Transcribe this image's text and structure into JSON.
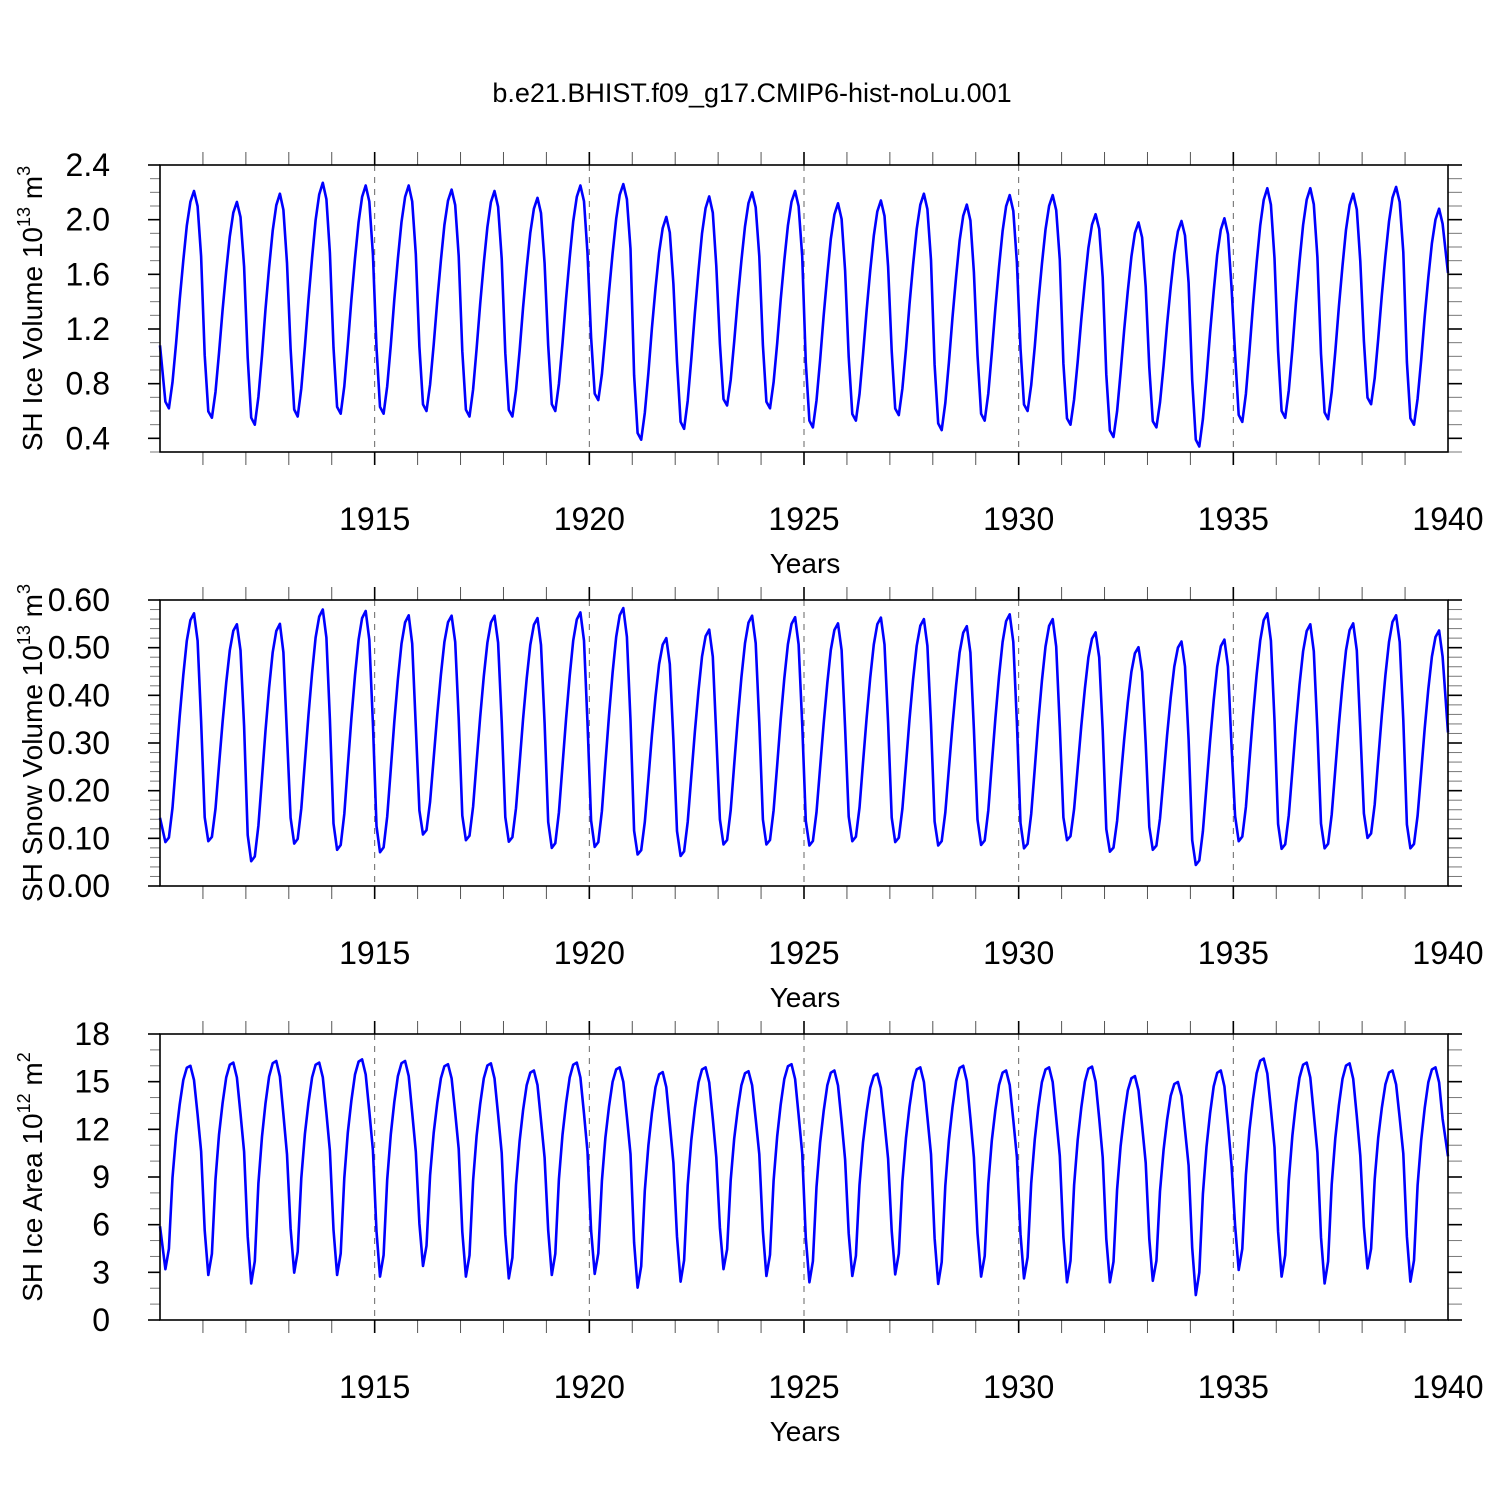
{
  "title": "b.e21.BHIST.f09_g17.CMIP6-hist-noLu.001",
  "line_color": "#0000ff",
  "chart_data": [
    {
      "type": "line",
      "ylabel": {
        "text": "SH Ice Volume 10",
        "exp1": "13",
        "unit": " m",
        "exp2": "3"
      },
      "xlabel": "Years",
      "xlim": [
        1910,
        1940
      ],
      "ylim": [
        0.3,
        2.4
      ],
      "xticks": [
        "1915",
        "1920",
        "1925",
        "1930",
        "1935",
        "1940"
      ],
      "yticks": [
        "0.4",
        "0.8",
        "1.2",
        "1.6",
        "2.0",
        "2.4"
      ],
      "grid": "dashed vertical lines at labeled years",
      "first_value": 1.08,
      "last_value": 1.61,
      "years": [
        1910,
        1911,
        1912,
        1913,
        1914,
        1915,
        1916,
        1917,
        1918,
        1919,
        1920,
        1921,
        1922,
        1923,
        1924,
        1925,
        1926,
        1927,
        1928,
        1929,
        1930,
        1931,
        1932,
        1933,
        1934,
        1935,
        1936,
        1937,
        1938,
        1939
      ],
      "annual_max": [
        2.21,
        2.13,
        2.19,
        2.27,
        2.25,
        2.25,
        2.22,
        2.21,
        2.16,
        2.25,
        2.26,
        2.02,
        2.17,
        2.2,
        2.21,
        2.12,
        2.14,
        2.19,
        2.11,
        2.18,
        2.18,
        2.04,
        1.98,
        1.99,
        2.01,
        2.23,
        2.23,
        2.19,
        2.24,
        2.08
      ],
      "annual_min": [
        0.62,
        0.55,
        0.5,
        0.56,
        0.58,
        0.58,
        0.6,
        0.56,
        0.56,
        0.6,
        0.68,
        0.39,
        0.47,
        0.64,
        0.62,
        0.48,
        0.53,
        0.57,
        0.46,
        0.53,
        0.6,
        0.5,
        0.41,
        0.48,
        0.34,
        0.52,
        0.55,
        0.54,
        0.65,
        0.5
      ]
    },
    {
      "type": "line",
      "ylabel": {
        "text": "SH Snow Volume 10",
        "exp1": "13",
        "unit": " m",
        "exp2": "3"
      },
      "xlabel": "Years",
      "xlim": [
        1910,
        1940
      ],
      "ylim": [
        0.0,
        0.6
      ],
      "xticks": [
        "1915",
        "1920",
        "1925",
        "1930",
        "1935",
        "1940"
      ],
      "yticks": [
        "0.00",
        "0.10",
        "0.20",
        "0.30",
        "0.40",
        "0.50",
        "0.60"
      ],
      "grid": "dashed vertical lines at labeled years",
      "first_value": 0.143,
      "last_value": 0.322,
      "years": [
        1910,
        1911,
        1912,
        1913,
        1914,
        1915,
        1916,
        1917,
        1918,
        1919,
        1920,
        1921,
        1922,
        1923,
        1924,
        1925,
        1926,
        1927,
        1928,
        1929,
        1930,
        1931,
        1932,
        1933,
        1934,
        1935,
        1936,
        1937,
        1938,
        1939
      ],
      "annual_max": [
        0.572,
        0.549,
        0.55,
        0.58,
        0.577,
        0.568,
        0.567,
        0.567,
        0.562,
        0.574,
        0.583,
        0.52,
        0.538,
        0.567,
        0.564,
        0.551,
        0.563,
        0.56,
        0.545,
        0.57,
        0.56,
        0.532,
        0.501,
        0.513,
        0.517,
        0.572,
        0.549,
        0.551,
        0.568,
        0.536
      ],
      "annual_min": [
        0.092,
        0.094,
        0.052,
        0.089,
        0.076,
        0.071,
        0.108,
        0.096,
        0.093,
        0.08,
        0.082,
        0.066,
        0.063,
        0.087,
        0.087,
        0.085,
        0.094,
        0.092,
        0.085,
        0.086,
        0.079,
        0.096,
        0.072,
        0.076,
        0.044,
        0.094,
        0.078,
        0.079,
        0.101,
        0.079
      ]
    },
    {
      "type": "line",
      "ylabel": {
        "text": "SH Ice Area 10",
        "exp1": "12",
        "unit": " m",
        "exp2": "2"
      },
      "xlabel": "Years",
      "xlim": [
        1910,
        1940
      ],
      "ylim": [
        0,
        18
      ],
      "xticks": [
        "1915",
        "1920",
        "1925",
        "1930",
        "1935",
        "1940"
      ],
      "yticks": [
        "0",
        "3",
        "6",
        "9",
        "12",
        "15",
        "18"
      ],
      "grid": "dashed vertical lines at labeled years",
      "first_value": 5.9,
      "last_value": 10.3,
      "years": [
        1910,
        1911,
        1912,
        1913,
        1914,
        1915,
        1916,
        1917,
        1918,
        1919,
        1920,
        1921,
        1922,
        1923,
        1924,
        1925,
        1926,
        1927,
        1928,
        1929,
        1930,
        1931,
        1932,
        1933,
        1934,
        1935,
        1936,
        1937,
        1938,
        1939
      ],
      "annual_max": [
        16.0,
        16.2,
        16.3,
        16.2,
        16.4,
        16.3,
        16.1,
        16.15,
        15.7,
        16.2,
        15.9,
        15.6,
        15.9,
        15.65,
        16.1,
        15.7,
        15.5,
        15.9,
        16.0,
        15.7,
        15.9,
        15.95,
        15.35,
        14.98,
        15.7,
        16.45,
        16.2,
        16.15,
        15.7,
        15.9
      ],
      "annual_min": [
        3.2,
        2.83,
        2.3,
        2.98,
        2.83,
        2.73,
        3.4,
        2.73,
        2.62,
        2.83,
        2.9,
        2.03,
        2.41,
        3.2,
        2.77,
        2.37,
        2.77,
        2.87,
        2.27,
        2.73,
        2.62,
        2.37,
        2.37,
        2.47,
        1.57,
        3.15,
        2.73,
        2.3,
        3.25,
        2.41
      ]
    }
  ]
}
